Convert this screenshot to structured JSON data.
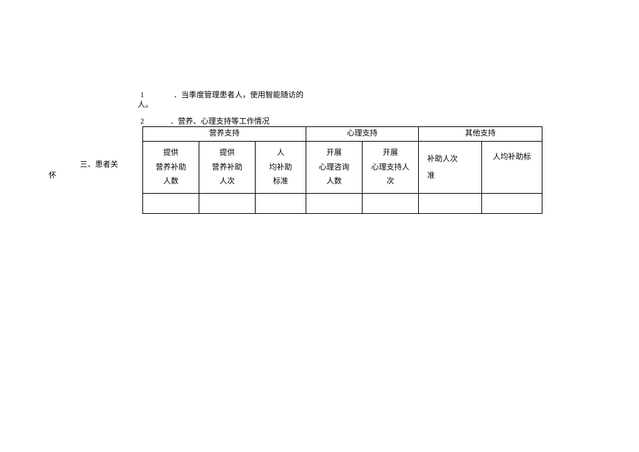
{
  "item1": {
    "num": "1",
    "text": "．当季度管理患者人，使用智能随访的",
    "cont": "人。"
  },
  "item2": {
    "num": "2",
    "text": "．营养、心理支持等工作情况"
  },
  "section": {
    "label": "三、患者关",
    "cont": "怀"
  },
  "table": {
    "groups": [
      "营养支持",
      "心理支持",
      "其他支持"
    ],
    "cols": [
      "提供<br>营养补助<br>人数",
      "提供<br>营养补助<br>人次",
      "人<br>均补助<br>标准",
      "开展<br>心理咨询<br>人数",
      "开展<br>心理支持人<br>次",
      "补助人次<br>准",
      "人均补助标"
    ],
    "row": [
      "",
      "",
      "",
      "",
      "",
      "",
      ""
    ],
    "border_color": "#000000",
    "font_size": 11
  },
  "colors": {
    "background": "#ffffff",
    "text": "#000000"
  }
}
